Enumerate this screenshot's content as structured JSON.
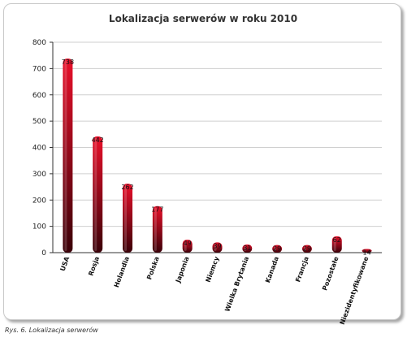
{
  "caption": "Rys. 6. Lokalizacja serwerów",
  "chart_data": {
    "type": "bar",
    "title": "Lokalizacja serwerów w roku 2010",
    "xlabel": "",
    "ylabel": "",
    "ylim": [
      0,
      800
    ],
    "yticks": [
      0,
      100,
      200,
      300,
      400,
      500,
      600,
      700,
      800
    ],
    "grid": true,
    "categories": [
      "USA",
      "Rosja",
      "Holandia",
      "Polska",
      "Japonia",
      "Niemcy",
      "Wielka Brytania",
      "Kanada",
      "Francja",
      "Pozostałe",
      "Niezidentyfikowane"
    ],
    "values": [
      738,
      442,
      262,
      177,
      49,
      39,
      31,
      29,
      29,
      62,
      14
    ],
    "data_labels": [
      "738",
      "442",
      "262",
      "177",
      "49",
      "39",
      "31",
      "29",
      "29",
      "62",
      "14"
    ],
    "colors": {
      "bar_top": "#e8102a",
      "bar_bottom": "#3a0008",
      "gridline": "#cfcfcf",
      "axis": "#333333"
    }
  }
}
